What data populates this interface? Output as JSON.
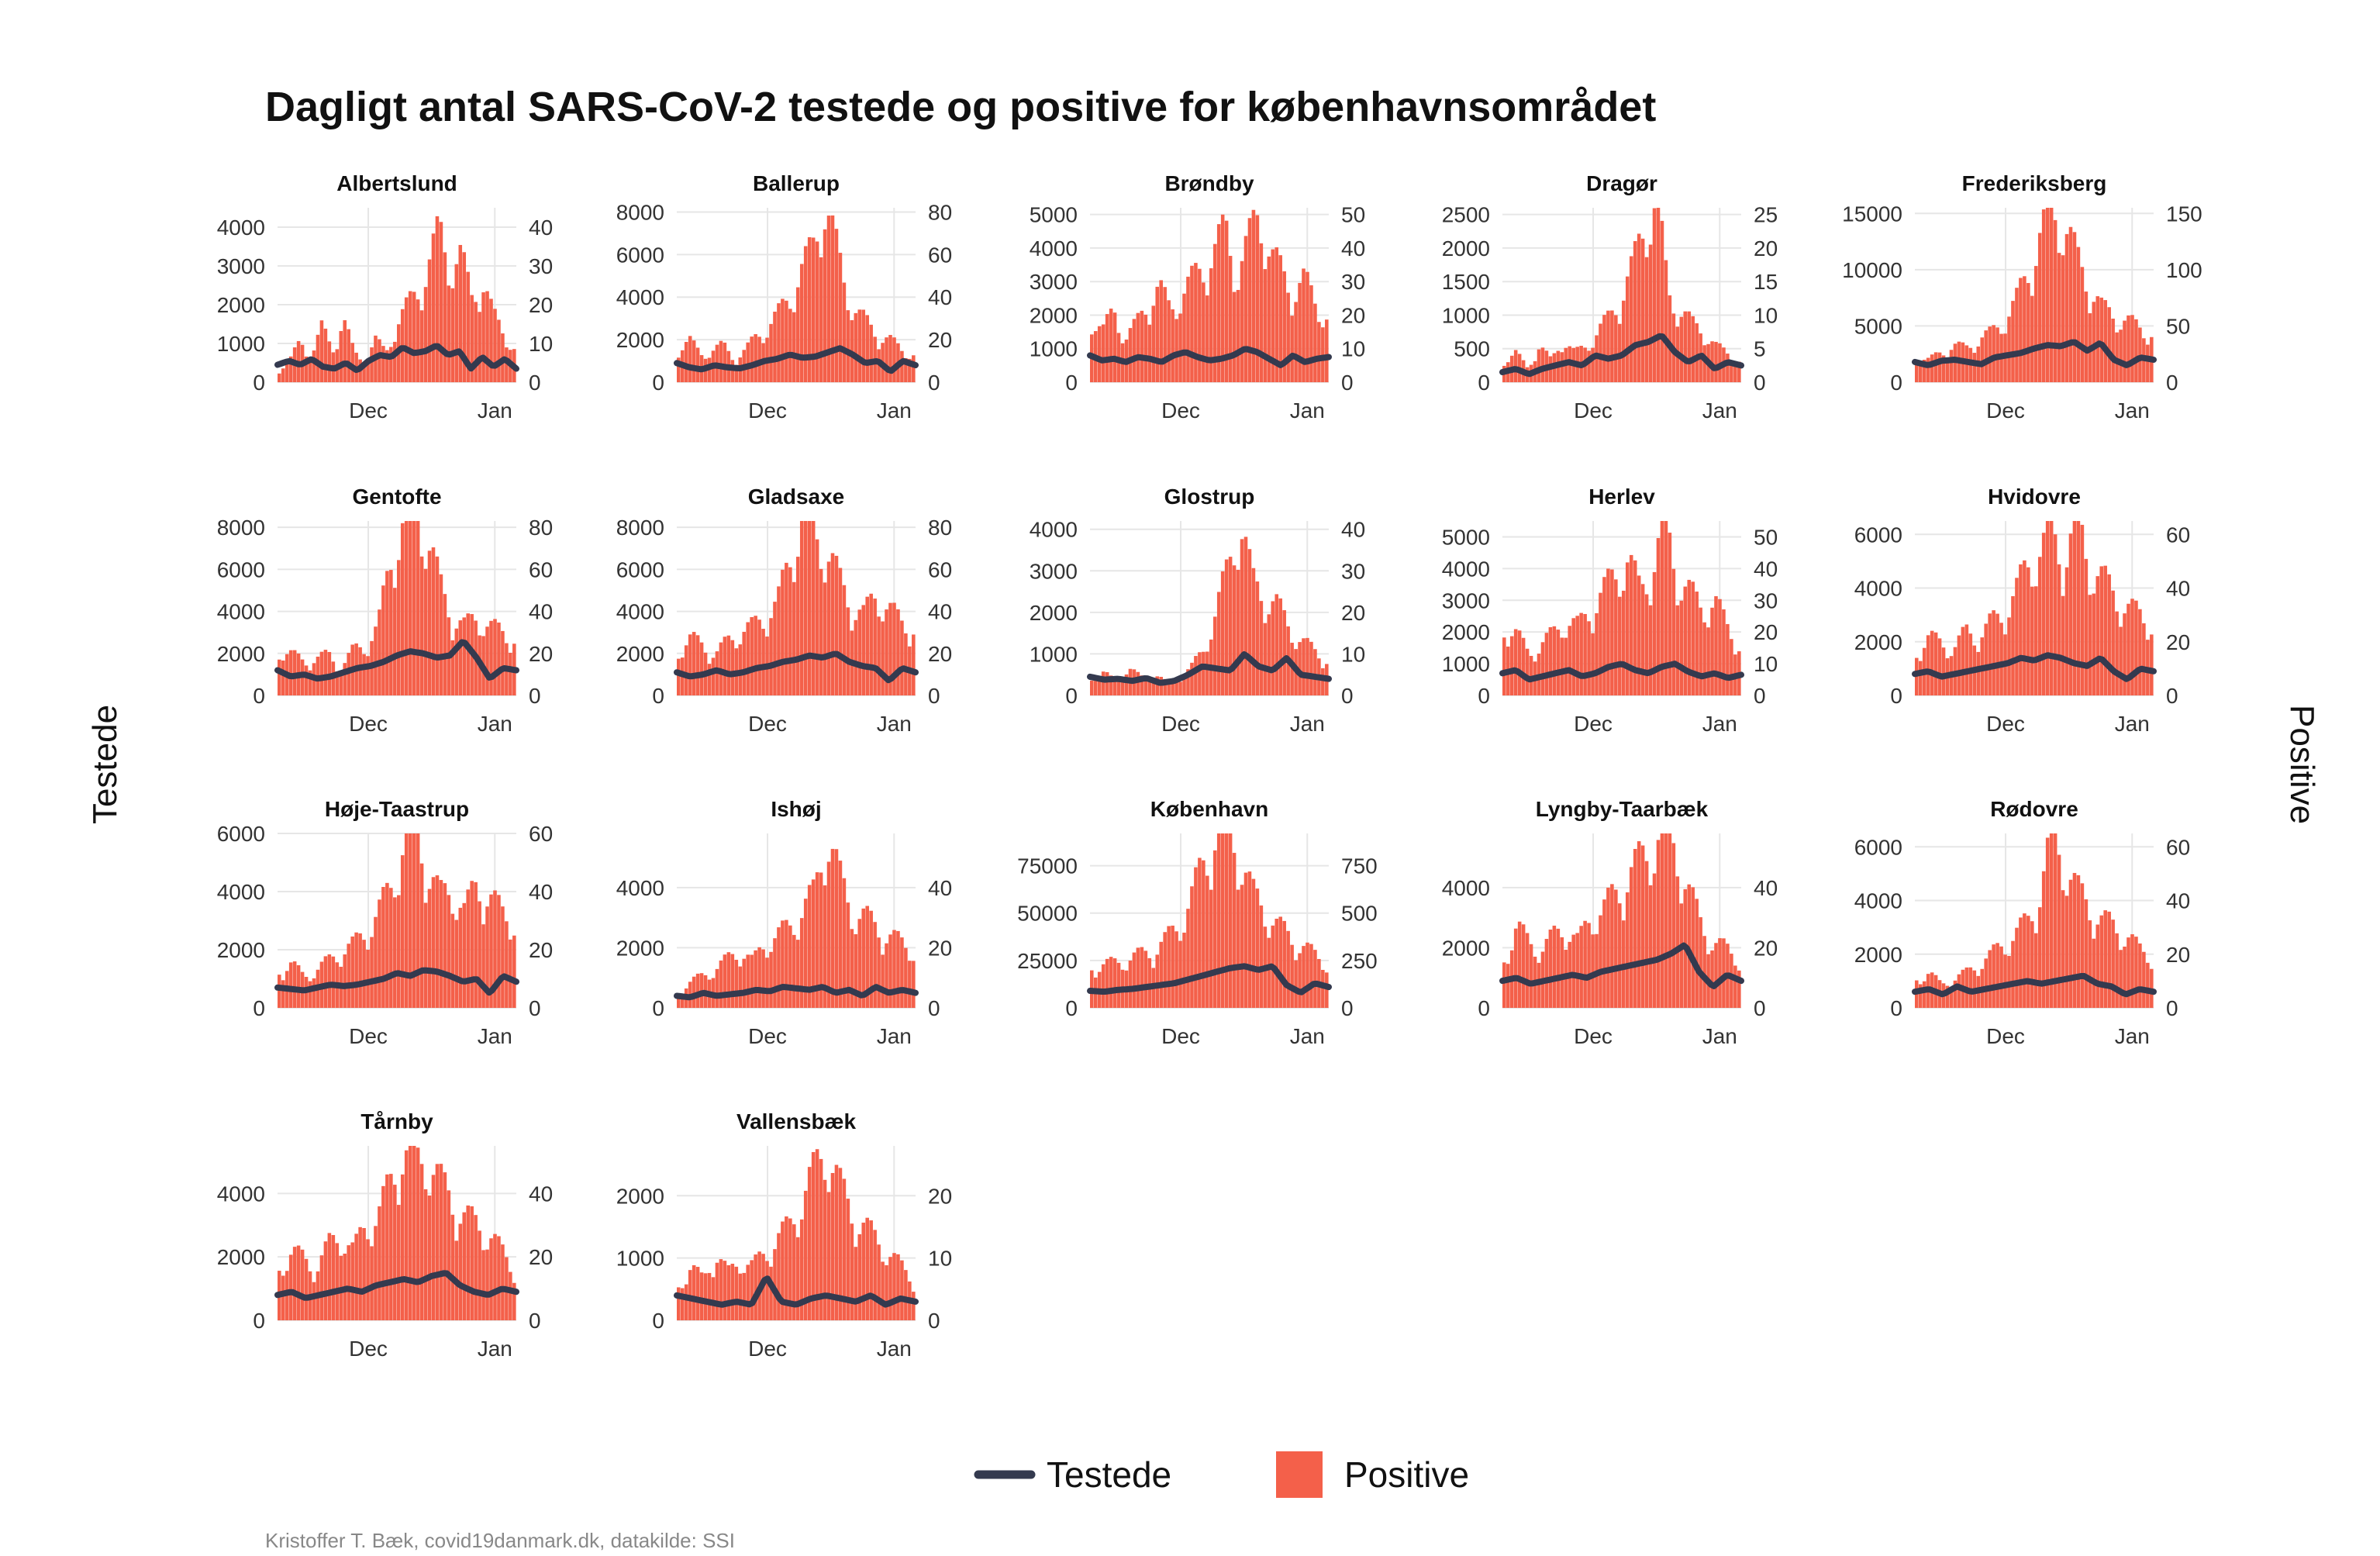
{
  "title": "Dagligt antal SARS-CoV-2 testede og positive for københavnsområdet",
  "left_axis_label": "Testede",
  "right_axis_label": "Positive",
  "caption": "Kristoffer T. Bæk, covid19danmark.dk, datakilde: SSI",
  "legend": {
    "position": "bottom",
    "items": [
      {
        "label": "Testede",
        "kind": "line",
        "color": "#343a4f"
      },
      {
        "label": "Positive",
        "kind": "bar",
        "color": "#f4604a"
      }
    ]
  },
  "colors": {
    "testede": "#343a4f",
    "positive": "#f4604a",
    "grid": "#e6e6e6",
    "text": "#333333"
  },
  "x_tick_labels": [
    "Dec",
    "Jan"
  ],
  "chart_data": [
    {
      "type": "bar+line",
      "panel": "Albertslund",
      "left_ticks": [
        0,
        1000,
        2000,
        3000,
        4000
      ],
      "right_ticks": [
        0,
        10,
        20,
        30,
        40
      ],
      "left_max": 4500,
      "right_max": 45,
      "positive_anchors": [
        3,
        5,
        10,
        6,
        13,
        8,
        15,
        7,
        5,
        10,
        7,
        14,
        18,
        22,
        28,
        36,
        28,
        30,
        20,
        25,
        16,
        12,
        8
      ],
      "testede_anchors": [
        450,
        550,
        450,
        600,
        400,
        350,
        500,
        300,
        550,
        700,
        650,
        900,
        750,
        800,
        950,
        700,
        800,
        350,
        650,
        400,
        600,
        350
      ]
    },
    {
      "type": "bar+line",
      "panel": "Ballerup",
      "left_ticks": [
        0,
        2000,
        4000,
        6000,
        8000
      ],
      "right_ticks": [
        0,
        20,
        40,
        60,
        80
      ],
      "left_max": 8200,
      "right_max": 82,
      "positive_anchors": [
        15,
        18,
        12,
        14,
        16,
        10,
        14,
        20,
        24,
        30,
        38,
        48,
        58,
        80,
        60,
        40,
        30,
        25,
        20,
        18,
        14,
        12
      ],
      "testede_anchors": [
        900,
        700,
        600,
        800,
        700,
        650,
        800,
        1000,
        1100,
        1300,
        1150,
        1200,
        1400,
        1600,
        1300,
        900,
        1000,
        500,
        1000,
        800
      ]
    },
    {
      "type": "bar+line",
      "panel": "Brøndby",
      "left_ticks": [
        0,
        1000,
        2000,
        3000,
        4000,
        5000
      ],
      "right_ticks": [
        0,
        10,
        20,
        30,
        40,
        50
      ],
      "left_max": 5200,
      "right_max": 52,
      "positive_anchors": [
        18,
        14,
        20,
        12,
        16,
        22,
        26,
        20,
        24,
        28,
        32,
        36,
        42,
        30,
        38,
        48,
        35,
        30,
        25,
        28,
        22,
        18
      ],
      "testede_anchors": [
        800,
        650,
        700,
        600,
        750,
        700,
        600,
        800,
        900,
        750,
        650,
        700,
        800,
        1000,
        900,
        700,
        500,
        800,
        600,
        700,
        750
      ]
    },
    {
      "type": "bar+line",
      "panel": "Dragør",
      "left_ticks": [
        0,
        500,
        1000,
        1500,
        2000,
        2500
      ],
      "right_ticks": [
        0,
        5,
        10,
        15,
        20,
        25
      ],
      "left_max": 2600,
      "right_max": 26,
      "positive_anchors": [
        3,
        4,
        2,
        5,
        3,
        6,
        4,
        5,
        7,
        9,
        12,
        16,
        22,
        25,
        12,
        10,
        8,
        7,
        5,
        4,
        3
      ],
      "testede_anchors": [
        150,
        200,
        120,
        200,
        250,
        300,
        250,
        400,
        350,
        400,
        550,
        600,
        700,
        450,
        300,
        400,
        200,
        300,
        250
      ]
    },
    {
      "type": "bar+line",
      "panel": "Frederiksberg",
      "left_ticks": [
        0,
        5000,
        10000,
        15000
      ],
      "right_ticks": [
        0,
        50,
        100,
        150
      ],
      "left_max": 15500,
      "right_max": 155,
      "positive_anchors": [
        20,
        18,
        25,
        30,
        28,
        35,
        40,
        50,
        65,
        90,
        120,
        140,
        130,
        100,
        80,
        60,
        55,
        50,
        45,
        40
      ],
      "testede_anchors": [
        1800,
        1500,
        1900,
        2000,
        1800,
        1600,
        2200,
        2400,
        2600,
        3000,
        3300,
        3200,
        3600,
        2800,
        3500,
        2000,
        1500,
        2200,
        2000
      ]
    },
    {
      "type": "bar+line",
      "panel": "Gentofte",
      "left_ticks": [
        0,
        2000,
        4000,
        6000,
        8000
      ],
      "right_ticks": [
        0,
        20,
        40,
        60,
        80
      ],
      "left_max": 8300,
      "right_max": 83,
      "positive_anchors": [
        20,
        18,
        15,
        16,
        18,
        12,
        20,
        22,
        30,
        60,
        75,
        82,
        70,
        48,
        35,
        30,
        35,
        30,
        28,
        25
      ],
      "testede_anchors": [
        1200,
        900,
        1000,
        800,
        900,
        1100,
        1300,
        1400,
        1600,
        1900,
        2100,
        2000,
        1800,
        1900,
        2600,
        1800,
        800,
        1300,
        1200
      ]
    },
    {
      "type": "bar+line",
      "panel": "Gladsaxe",
      "left_ticks": [
        0,
        2000,
        4000,
        6000,
        8000
      ],
      "right_ticks": [
        0,
        20,
        40,
        60,
        80
      ],
      "left_max": 8300,
      "right_max": 83,
      "positive_anchors": [
        20,
        25,
        22,
        18,
        24,
        28,
        30,
        35,
        40,
        60,
        80,
        70,
        65,
        50,
        40,
        35,
        45,
        38,
        32,
        30
      ],
      "testede_anchors": [
        1100,
        900,
        1000,
        1200,
        1000,
        1100,
        1300,
        1400,
        1600,
        1700,
        1900,
        1800,
        2000,
        1600,
        1400,
        1300,
        700,
        1300,
        1100
      ]
    },
    {
      "type": "bar+line",
      "panel": "Glostrup",
      "left_ticks": [
        0,
        1000,
        2000,
        3000,
        4000
      ],
      "right_ticks": [
        0,
        10,
        20,
        30,
        40
      ],
      "left_max": 4200,
      "right_max": 42,
      "positive_anchors": [
        4,
        5,
        3,
        6,
        4,
        5,
        3,
        4,
        6,
        10,
        18,
        28,
        40,
        25,
        22,
        20,
        15,
        12,
        10,
        8
      ],
      "testede_anchors": [
        450,
        380,
        400,
        350,
        420,
        300,
        350,
        500,
        700,
        650,
        600,
        1000,
        700,
        600,
        900,
        500,
        450,
        400
      ]
    },
    {
      "type": "bar+line",
      "panel": "Herlev",
      "left_ticks": [
        0,
        1000,
        2000,
        3000,
        4000,
        5000
      ],
      "right_ticks": [
        0,
        10,
        20,
        30,
        40,
        50
      ],
      "left_max": 5500,
      "right_max": 55,
      "positive_anchors": [
        20,
        18,
        12,
        15,
        18,
        22,
        20,
        25,
        30,
        35,
        40,
        30,
        38,
        50,
        35,
        30,
        25,
        28,
        20,
        15
      ],
      "testede_anchors": [
        700,
        800,
        500,
        600,
        700,
        800,
        600,
        700,
        900,
        1000,
        800,
        700,
        900,
        1000,
        750,
        600,
        700,
        550,
        650
      ]
    },
    {
      "type": "bar+line",
      "panel": "Hvidovre",
      "left_ticks": [
        0,
        2000,
        4000,
        6000
      ],
      "right_ticks": [
        0,
        20,
        40,
        60
      ],
      "left_max": 6500,
      "right_max": 65,
      "positive_anchors": [
        15,
        20,
        18,
        16,
        22,
        20,
        25,
        28,
        35,
        45,
        50,
        55,
        48,
        60,
        45,
        40,
        35,
        30,
        28,
        25
      ],
      "testede_anchors": [
        800,
        900,
        700,
        800,
        900,
        1000,
        1100,
        1200,
        1400,
        1300,
        1500,
        1400,
        1200,
        1100,
        1400,
        900,
        600,
        1000,
        900
      ]
    },
    {
      "type": "bar+line",
      "panel": "Høje-Taastrup",
      "left_ticks": [
        0,
        2000,
        4000,
        6000
      ],
      "right_ticks": [
        0,
        20,
        40,
        60
      ],
      "left_max": 6000,
      "right_max": 60,
      "positive_anchors": [
        12,
        14,
        10,
        12,
        15,
        18,
        20,
        24,
        30,
        38,
        52,
        58,
        45,
        35,
        38,
        30,
        40,
        35,
        30,
        28
      ],
      "testede_anchors": [
        700,
        650,
        600,
        700,
        800,
        750,
        800,
        900,
        1000,
        1200,
        1100,
        1300,
        1250,
        1100,
        900,
        1000,
        500,
        1100,
        900
      ]
    },
    {
      "type": "bar+line",
      "panel": "Ishøj",
      "left_ticks": [
        0,
        2000,
        4000
      ],
      "right_ticks": [
        0,
        20,
        40
      ],
      "left_max": 5800,
      "right_max": 58,
      "positive_anchors": [
        5,
        8,
        10,
        12,
        15,
        18,
        14,
        20,
        22,
        25,
        30,
        35,
        55,
        40,
        30,
        28,
        25,
        22,
        20,
        18
      ],
      "testede_anchors": [
        400,
        350,
        500,
        400,
        450,
        500,
        600,
        550,
        700,
        650,
        600,
        700,
        500,
        600,
        400,
        700,
        500,
        600,
        500
      ]
    },
    {
      "type": "bar+line",
      "panel": "København",
      "left_ticks": [
        0,
        25000,
        50000,
        75000
      ],
      "right_ticks": [
        0,
        250,
        500,
        750
      ],
      "left_max": 92000,
      "right_max": 920,
      "positive_anchors": [
        200,
        210,
        220,
        240,
        260,
        280,
        330,
        400,
        520,
        700,
        850,
        880,
        750,
        550,
        480,
        400,
        350,
        300,
        260,
        220
      ],
      "testede_anchors": [
        9000,
        8500,
        9500,
        10000,
        11000,
        12000,
        13000,
        15000,
        17000,
        19000,
        21000,
        22000,
        20000,
        22000,
        12000,
        8000,
        13000,
        11000
      ]
    },
    {
      "type": "bar+line",
      "panel": "Lyngby-Taarbæk",
      "left_ticks": [
        0,
        2000,
        4000
      ],
      "right_ticks": [
        0,
        20,
        40
      ],
      "left_max": 5800,
      "right_max": 58,
      "positive_anchors": [
        15,
        25,
        20,
        18,
        22,
        25,
        20,
        28,
        30,
        35,
        40,
        45,
        50,
        55,
        48,
        35,
        25,
        20,
        18,
        15
      ],
      "testede_anchors": [
        900,
        1000,
        800,
        900,
        1000,
        1100,
        1000,
        1200,
        1300,
        1400,
        1500,
        1600,
        1800,
        2100,
        1200,
        700,
        1100,
        900
      ]
    },
    {
      "type": "bar+line",
      "panel": "Rødovre",
      "left_ticks": [
        0,
        2000,
        4000,
        6000
      ],
      "right_ticks": [
        0,
        20,
        40,
        60
      ],
      "left_max": 6500,
      "right_max": 65,
      "positive_anchors": [
        10,
        12,
        8,
        10,
        12,
        15,
        18,
        22,
        25,
        30,
        40,
        60,
        50,
        40,
        35,
        30,
        28,
        25,
        20,
        18
      ],
      "testede_anchors": [
        600,
        700,
        500,
        800,
        600,
        700,
        800,
        900,
        1000,
        900,
        1000,
        1100,
        1200,
        900,
        800,
        500,
        700,
        600
      ]
    },
    {
      "type": "bar+line",
      "panel": "Tårnby",
      "left_ticks": [
        0,
        2000,
        4000
      ],
      "right_ticks": [
        0,
        20,
        40
      ],
      "left_max": 5500,
      "right_max": 55,
      "positive_anchors": [
        15,
        20,
        18,
        15,
        22,
        25,
        20,
        28,
        30,
        40,
        50,
        45,
        48,
        40,
        35,
        30,
        28,
        25,
        20,
        15
      ],
      "testede_anchors": [
        800,
        900,
        700,
        800,
        900,
        1000,
        900,
        1100,
        1200,
        1300,
        1200,
        1400,
        1500,
        1100,
        900,
        800,
        1000,
        900
      ]
    },
    {
      "type": "bar+line",
      "panel": "Vallensbæk",
      "left_ticks": [
        0,
        1000,
        2000
      ],
      "right_ticks": [
        0,
        10,
        20
      ],
      "left_max": 2800,
      "right_max": 28,
      "positive_anchors": [
        5,
        8,
        6,
        10,
        7,
        9,
        8,
        10,
        12,
        14,
        18,
        22,
        26,
        20,
        16,
        14,
        12,
        10,
        8,
        6
      ],
      "testede_anchors": [
        400,
        350,
        300,
        250,
        300,
        250,
        700,
        300,
        250,
        350,
        400,
        350,
        300,
        400,
        250,
        350,
        300
      ]
    }
  ]
}
